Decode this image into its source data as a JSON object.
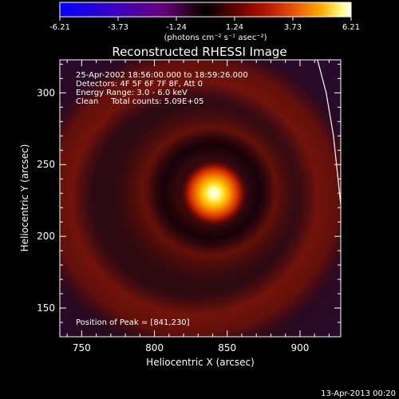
{
  "colorbar": {
    "ticks": [
      "-6.21",
      "-3.73",
      "-1.24",
      "1.24",
      "3.73",
      "6.21"
    ],
    "unit_label": "(photons cm⁻² s⁻¹ asec⁻²)"
  },
  "chart_data": {
    "type": "heatmap",
    "title": "Reconstructed RHESSI Image",
    "xlabel": "Heliocentric X (arcsec)",
    "ylabel": "Heliocentric Y (arcsec)",
    "xlim": [
      735,
      928
    ],
    "ylim": [
      130,
      323
    ],
    "xticks": [
      750,
      800,
      850,
      900
    ],
    "yticks": [
      150,
      200,
      250,
      300
    ],
    "color_range": [
      -6.21,
      6.21
    ],
    "colormap": [
      "#0000ff",
      "#4000c0",
      "#600080",
      "#200020",
      "#000000",
      "#500000",
      "#a01000",
      "#e04000",
      "#ffa000",
      "#ffff80",
      "#ffffff"
    ],
    "annotations": [
      "25-Apr-2002 18:56:00.000 to 18:59:26.000",
      "Detectors: 4F 5F 6F 7F 8F, Att 0",
      "Energy Range: 3.0 - 6.0 keV",
      "Clean     Total counts: 5.09E+05"
    ],
    "peak_label": "Position of Peak = [841,230]",
    "peak": {
      "x": 841,
      "y": 230
    },
    "limb_curve": [
      [
        912,
        323
      ],
      [
        918,
        300
      ],
      [
        923,
        270
      ],
      [
        928,
        222
      ]
    ],
    "footer": "13-Apr-2013 00:20"
  }
}
